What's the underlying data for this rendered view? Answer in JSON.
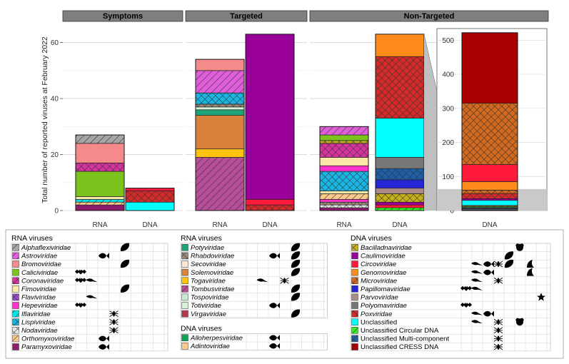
{
  "chart_data": {
    "type": "bar",
    "stacked": true,
    "ylabel": "Total number of reported viruses at February 2022",
    "ylim": [
      0,
      65
    ],
    "yticks": [
      0,
      20,
      40,
      60
    ],
    "panels": [
      "Symptoms",
      "Targeted",
      "Non-Targeted"
    ],
    "bars": [
      {
        "panel": "Symptoms",
        "label": "RNA",
        "total": 27,
        "segments": [
          {
            "family": "Paramyxoviridae",
            "value": 2
          },
          {
            "family": "Orthomyxoviridae",
            "value": 1
          },
          {
            "family": "Iflaviridae",
            "value": 1
          },
          {
            "family": "Fimoviridae",
            "value": 1
          },
          {
            "family": "Caliciviridae",
            "value": 9
          },
          {
            "family": "Coronaviridae",
            "value": 3
          },
          {
            "family": "Bromoviridae",
            "value": 7
          },
          {
            "family": "Alphaflexiviridae",
            "value": 3
          }
        ]
      },
      {
        "panel": "Symptoms",
        "label": "DNA",
        "total": 8,
        "segments": [
          {
            "family": "Unclassified",
            "value": 3
          },
          {
            "family": "Poxviridae",
            "value": 4
          },
          {
            "family": "Circoviridae",
            "value": 1
          }
        ]
      },
      {
        "panel": "Targeted",
        "label": "RNA",
        "total": 54,
        "segments": [
          {
            "family": "Tombusviridae",
            "value": 19
          },
          {
            "family": "Togaviridae",
            "value": 3
          },
          {
            "family": "Solemoviridae",
            "value": 12
          },
          {
            "family": "Potyviridae",
            "value": 2
          },
          {
            "family": "Totiviridae",
            "value": 1
          },
          {
            "family": "Rhabdoviridae",
            "value": 1
          },
          {
            "family": "Lispiviridae",
            "value": 4
          },
          {
            "family": "Astroviridae",
            "value": 8
          },
          {
            "family": "Bromoviridae",
            "value": 4
          }
        ]
      },
      {
        "panel": "Targeted",
        "label": "DNA",
        "total": 63,
        "segments": [
          {
            "family": "Poxviridae",
            "value": 2
          },
          {
            "family": "Circoviridae",
            "value": 2
          },
          {
            "family": "Caulimoviridae",
            "value": 59
          }
        ]
      },
      {
        "panel": "Non-Targeted",
        "label": "RNA",
        "total": 30,
        "segments": [
          {
            "family": "Paramyxoviridae",
            "value": 1
          },
          {
            "family": "Nodaviridae",
            "value": 1
          },
          {
            "family": "Rhabdoviridae",
            "value": 1
          },
          {
            "family": "Hepeviridae",
            "value": 1
          },
          {
            "family": "Orthomyxoviridae",
            "value": 2
          },
          {
            "family": "Fimoviridae",
            "value": 1
          },
          {
            "family": "Lispiviridae",
            "value": 7
          },
          {
            "family": "Hepeviridae",
            "value": 2
          },
          {
            "family": "Fimoviridae",
            "value": 3
          },
          {
            "family": "Coronaviridae",
            "value": 5
          },
          {
            "family": "Bacilladnaviridae",
            "value": 1
          },
          {
            "family": "Caliciviridae",
            "value": 2
          },
          {
            "family": "Astroviridae",
            "value": 3
          }
        ]
      },
      {
        "panel": "Non-Targeted",
        "label": "DNA",
        "total": 63,
        "segments": [
          {
            "family": "Unclassified Circular DNA",
            "value": 1
          },
          {
            "family": "Circoviridae",
            "value": 1
          },
          {
            "family": "Caulimoviridae",
            "value": 1
          },
          {
            "family": "Bacilladnaviridae",
            "value": 3
          },
          {
            "family": "Parvoviridae",
            "value": 2
          },
          {
            "family": "Papillomaviridae",
            "value": 3
          },
          {
            "family": "Unclassified Multi-component",
            "value": 4
          },
          {
            "family": "Polyomaviridae",
            "value": 4
          },
          {
            "family": "Unclassified",
            "value": 14
          },
          {
            "family": "Poxviridae",
            "value": 22
          },
          {
            "family": "Genomoviridae",
            "value": 8
          }
        ]
      }
    ],
    "inset": {
      "label": "DNA",
      "ylim": [
        0,
        530
      ],
      "yticks": [
        0,
        100,
        200,
        300,
        400,
        500
      ],
      "total": 520,
      "segments": [
        {
          "family": "Unclassified Multi-component",
          "value": 2
        },
        {
          "family": "Polyomaviridae",
          "value": 3
        },
        {
          "family": "Papillomaviridae",
          "value": 2
        },
        {
          "family": "Parvoviridae",
          "value": 2
        },
        {
          "family": "Unclassified Circular DNA",
          "value": 3
        },
        {
          "family": "Microviridae",
          "value": 3
        },
        {
          "family": "Unclassified",
          "value": 15
        },
        {
          "family": "Caulimoviridae",
          "value": 5
        },
        {
          "family": "Poxviridae",
          "value": 15
        },
        {
          "family": "Microviridae",
          "value": 10
        },
        {
          "family": "Genomoviridae",
          "value": 25
        },
        {
          "family": "Circoviridae",
          "value": 50
        },
        {
          "family": "Microviridae",
          "value": 180
        },
        {
          "family": "Unclassified CRESS DNA",
          "value": 207
        }
      ]
    }
  },
  "legend": {
    "col1": {
      "title": "RNA viruses",
      "items": [
        {
          "name": "Alphaflexiviridae",
          "italic": true,
          "hosts": [
            0,
            0,
            0,
            0,
            1,
            0,
            0,
            0
          ]
        },
        {
          "name": "Astroviridae",
          "italic": true,
          "hosts": [
            0,
            0,
            1,
            0,
            0,
            0,
            0,
            0
          ]
        },
        {
          "name": "Bromoviridae",
          "italic": true,
          "hosts": [
            0,
            0,
            0,
            0,
            1,
            0,
            0,
            0
          ]
        },
        {
          "name": "Caliciviridae",
          "italic": true,
          "hosts": [
            1,
            0,
            0,
            0,
            0,
            0,
            0,
            0
          ]
        },
        {
          "name": "Coronaviridae",
          "italic": true,
          "hosts": [
            1,
            1,
            0,
            0,
            0,
            0,
            0,
            0
          ]
        },
        {
          "name": "Fimoviridae",
          "italic": true,
          "hosts": [
            0,
            0,
            0,
            0,
            1,
            0,
            0,
            0
          ]
        },
        {
          "name": "Flaviviridae",
          "italic": true,
          "hosts": [
            0,
            1,
            0,
            0,
            0,
            0,
            0,
            0
          ]
        },
        {
          "name": "Hepeviridae",
          "italic": true,
          "hosts": [
            1,
            0,
            0,
            0,
            0,
            0,
            0,
            0
          ]
        },
        {
          "name": "Iflaviridae",
          "italic": true,
          "hosts": [
            0,
            0,
            0,
            1,
            0,
            0,
            0,
            0
          ]
        },
        {
          "name": "Lispiviridae",
          "italic": true,
          "hosts": [
            0,
            0,
            0,
            1,
            0,
            0,
            0,
            0
          ]
        },
        {
          "name": "Nodaviridae",
          "italic": true,
          "hosts": [
            0,
            0,
            0,
            1,
            0,
            0,
            0,
            0
          ]
        },
        {
          "name": "Orthomyxoviridae",
          "italic": true,
          "hosts": [
            0,
            0,
            1,
            0,
            0,
            0,
            0,
            0
          ]
        },
        {
          "name": "Paramyxoviridae",
          "italic": true,
          "hosts": [
            0,
            0,
            1,
            0,
            0,
            0,
            0,
            0
          ]
        }
      ]
    },
    "col2": {
      "title": "RNA viruses",
      "items": [
        {
          "name": "Potyviridae",
          "italic": true,
          "hosts": [
            0,
            0,
            0,
            0,
            1,
            0,
            0,
            0
          ]
        },
        {
          "name": "Rhabdoviridae",
          "italic": true,
          "hosts": [
            0,
            0,
            1,
            0,
            1,
            0,
            0,
            0
          ]
        },
        {
          "name": "Secoviridae",
          "italic": true,
          "hosts": [
            0,
            0,
            0,
            0,
            1,
            0,
            0,
            0
          ]
        },
        {
          "name": "Solemoviridae",
          "italic": true,
          "hosts": [
            0,
            0,
            0,
            0,
            1,
            0,
            0,
            0
          ]
        },
        {
          "name": "Togaviridae",
          "italic": true,
          "hosts": [
            0,
            1,
            0,
            1,
            0,
            0,
            0,
            0
          ]
        },
        {
          "name": "Tombusviridae",
          "italic": true,
          "hosts": [
            0,
            0,
            0,
            0,
            1,
            0,
            0,
            0
          ]
        },
        {
          "name": "Tospoviridae",
          "italic": true,
          "hosts": [
            0,
            0,
            0,
            0,
            1,
            0,
            0,
            0
          ]
        },
        {
          "name": "Totiviridae",
          "italic": true,
          "hosts": [
            0,
            0,
            1,
            0,
            0,
            0,
            0,
            0
          ]
        },
        {
          "name": "Virgaviridae",
          "italic": true,
          "hosts": [
            0,
            0,
            0,
            0,
            1,
            0,
            0,
            0
          ]
        }
      ]
    },
    "col2b": {
      "title": "DNA viruses",
      "items": [
        {
          "name": "Alloherpesviridae",
          "italic": true,
          "hosts": [
            0,
            0,
            1,
            0,
            0,
            0,
            0,
            0
          ]
        },
        {
          "name": "Adintoviridae",
          "italic": true,
          "hosts": [
            0,
            0,
            1,
            0,
            0,
            0,
            0,
            0
          ]
        }
      ]
    },
    "col3": {
      "title": "DNA viruses",
      "items": [
        {
          "name": "Bacilladnaviridae",
          "italic": true,
          "hosts": [
            0,
            0,
            0,
            0,
            0,
            1,
            0,
            0
          ]
        },
        {
          "name": "Caulimoviridae",
          "italic": true,
          "hosts": [
            0,
            0,
            0,
            0,
            1,
            0,
            0,
            0
          ]
        },
        {
          "name": "Circoviridae",
          "italic": true,
          "hosts": [
            0,
            1,
            1,
            1,
            1,
            0,
            1,
            0
          ]
        },
        {
          "name": "Genomoviridae",
          "italic": true,
          "hosts": [
            0,
            1,
            1,
            0,
            0,
            0,
            1,
            0
          ]
        },
        {
          "name": "Microviridae",
          "italic": true,
          "hosts": [
            0,
            1,
            0,
            1,
            0,
            0,
            0,
            0
          ]
        },
        {
          "name": "Papillomaviridae",
          "italic": true,
          "hosts": [
            1,
            1,
            0,
            0,
            0,
            0,
            0,
            0
          ]
        },
        {
          "name": "Parvoviridae",
          "italic": true,
          "hosts": [
            0,
            0,
            0,
            0,
            0,
            0,
            0,
            1
          ]
        },
        {
          "name": "Polyomaviridae",
          "italic": true,
          "hosts": [
            1,
            0,
            0,
            0,
            0,
            0,
            0,
            0
          ]
        },
        {
          "name": "Poxviridae",
          "italic": true,
          "hosts": [
            0,
            1,
            1,
            0,
            0,
            0,
            0,
            0
          ]
        },
        {
          "name": "Unclassified",
          "italic": false,
          "hosts": [
            0,
            1,
            0,
            1,
            0,
            1,
            0,
            0
          ]
        },
        {
          "name": "Unclassified Circular DNA",
          "italic": false,
          "hosts": [
            0,
            0,
            0,
            1,
            0,
            0,
            0,
            0
          ]
        },
        {
          "name": "Unclassified Multi-component",
          "italic": false,
          "hosts": [
            0,
            0,
            0,
            1,
            0,
            0,
            0,
            0
          ]
        },
        {
          "name": "Unclassified CRESS DNA",
          "italic": false,
          "hosts": [
            0,
            0,
            0,
            1,
            0,
            0,
            0,
            0
          ]
        }
      ]
    }
  },
  "families": {
    "Alphaflexiviridae": {
      "color": "#a6a6a6",
      "pattern": "diag"
    },
    "Astroviridae": {
      "color": "#e05ed9",
      "pattern": "diag"
    },
    "Bromoviridae": {
      "color": "#f58a8a",
      "pattern": "none"
    },
    "Caliciviridae": {
      "color": "#7cc41d",
      "pattern": "none"
    },
    "Coronaviridae": {
      "color": "#d6339e",
      "pattern": "cross"
    },
    "Fimoviridae": {
      "color": "#fde7a6",
      "pattern": "none"
    },
    "Flaviviridae": {
      "color": "#9a4bc9",
      "pattern": "cross"
    },
    "Hepeviridae": {
      "color": "#ff33cc",
      "pattern": "none"
    },
    "Iflaviridae": {
      "color": "#00e6e6",
      "pattern": "diag"
    },
    "Lispiviridae": {
      "color": "#19b6e3",
      "pattern": "cross"
    },
    "Nodaviridae": {
      "color": "#e6e6e6",
      "pattern": "cross"
    },
    "Orthomyxoviridae": {
      "color": "#fbc98a",
      "pattern": "diag"
    },
    "Paramyxoviridae": {
      "color": "#8a1d6c",
      "pattern": "none"
    },
    "Potyviridae": {
      "color": "#1fa57a",
      "pattern": "none"
    },
    "Rhabdoviridae": {
      "color": "#9c8a7c",
      "pattern": "cross"
    },
    "Secoviridae": {
      "color": "#fde7d6",
      "pattern": "none"
    },
    "Solemoviridae": {
      "color": "#d9823d",
      "pattern": "none"
    },
    "Togaviridae": {
      "color": "#ffc20e",
      "pattern": "none"
    },
    "Tombusviridae": {
      "color": "#b84e98",
      "pattern": "diag"
    },
    "Tospoviridae": {
      "color": "#c9ebd6",
      "pattern": "none"
    },
    "Totiviridae": {
      "color": "#d7f0d7",
      "pattern": "none"
    },
    "Virgaviridae": {
      "color": "#b13a4e",
      "pattern": "none"
    },
    "Alloherpesviridae": {
      "color": "#10a550",
      "pattern": "none"
    },
    "Adintoviridae": {
      "color": "#f7c98e",
      "pattern": "none"
    },
    "Bacilladnaviridae": {
      "color": "#c4b01a",
      "pattern": "cross"
    },
    "Caulimoviridae": {
      "color": "#990099",
      "pattern": "none"
    },
    "Circoviridae": {
      "color": "#ff1a3c",
      "pattern": "none"
    },
    "Genomoviridae": {
      "color": "#ff8c1a",
      "pattern": "none"
    },
    "Microviridae": {
      "color": "#d2691e",
      "pattern": "cross"
    },
    "Papillomaviridae": {
      "color": "#2626d9",
      "pattern": "none"
    },
    "Parvoviridae": {
      "color": "#ab8b86",
      "pattern": "none"
    },
    "Polyomaviridae": {
      "color": "#777777",
      "pattern": "none"
    },
    "Poxviridae": {
      "color": "#d42a2a",
      "pattern": "cross"
    },
    "Unclassified": {
      "color": "#00ffff",
      "pattern": "none"
    },
    "Unclassified Circular DNA": {
      "color": "#33ee22",
      "pattern": "diag"
    },
    "Unclassified Multi-component": {
      "color": "#1f5fa8",
      "pattern": "cross"
    },
    "Unclassified CRESS DNA": {
      "color": "#a80000",
      "pattern": "none"
    }
  },
  "host_icons": [
    "bat-icon",
    "bird-icon",
    "fish-icon",
    "insect-icon",
    "plant-icon",
    "algae-icon",
    "pollen-icon",
    "star-icon"
  ]
}
